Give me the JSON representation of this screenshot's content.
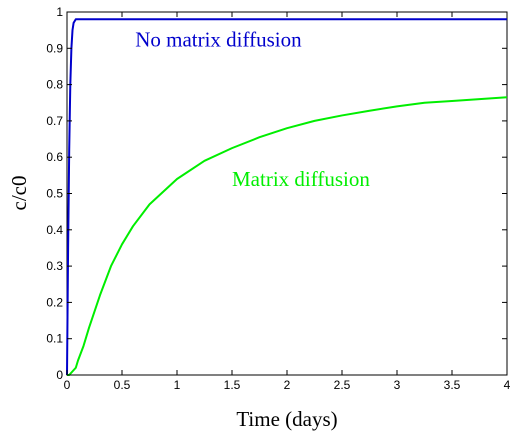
{
  "chart_data": {
    "type": "line",
    "xlabel": "Time (days)",
    "ylabel": "c/c0",
    "xlim": [
      0,
      4
    ],
    "ylim": [
      0,
      1
    ],
    "x_ticks": [
      0,
      0.5,
      1,
      1.5,
      2,
      2.5,
      3,
      3.5,
      4
    ],
    "x_tick_labels": [
      "0",
      "0.5",
      "1",
      "1.5",
      "2",
      "2.5",
      "3",
      "3.5",
      "4"
    ],
    "y_ticks": [
      0,
      0.1,
      0.2,
      0.3,
      0.4,
      0.5,
      0.6,
      0.7,
      0.8,
      0.9,
      1
    ],
    "y_tick_labels": [
      "0",
      "0.1",
      "0.2",
      "0.3",
      "0.4",
      "0.5",
      "0.6",
      "0.7",
      "0.8",
      "0.9",
      "1"
    ],
    "grid": false,
    "series": [
      {
        "id": "no-matrix-diffusion",
        "color": "#0000cc",
        "x": [
          0,
          0.01,
          0.02,
          0.03,
          0.04,
          0.05,
          0.06,
          0.08,
          0.1,
          4
        ],
        "y": [
          0,
          0.35,
          0.62,
          0.8,
          0.9,
          0.95,
          0.97,
          0.98,
          0.98,
          0.98
        ]
      },
      {
        "id": "matrix-diffusion",
        "color": "#00ee00",
        "x": [
          0,
          0.02,
          0.05,
          0.08,
          0.1,
          0.15,
          0.2,
          0.3,
          0.4,
          0.5,
          0.6,
          0.75,
          1,
          1.25,
          1.5,
          1.75,
          2,
          2.25,
          2.5,
          2.75,
          3,
          3.25,
          3.5,
          3.75,
          4
        ],
        "y": [
          0,
          0.0,
          0.01,
          0.02,
          0.04,
          0.08,
          0.13,
          0.22,
          0.3,
          0.36,
          0.41,
          0.47,
          0.54,
          0.59,
          0.625,
          0.655,
          0.68,
          0.7,
          0.715,
          0.728,
          0.74,
          0.75,
          0.755,
          0.76,
          0.765
        ]
      }
    ],
    "annotations": [
      {
        "text": "No matrix diffusion",
        "color": "#0000cc",
        "x": 0.62,
        "y": 0.905
      },
      {
        "text": "Matrix diffusion",
        "color": "#00ee00",
        "x": 1.5,
        "y": 0.52
      }
    ]
  }
}
